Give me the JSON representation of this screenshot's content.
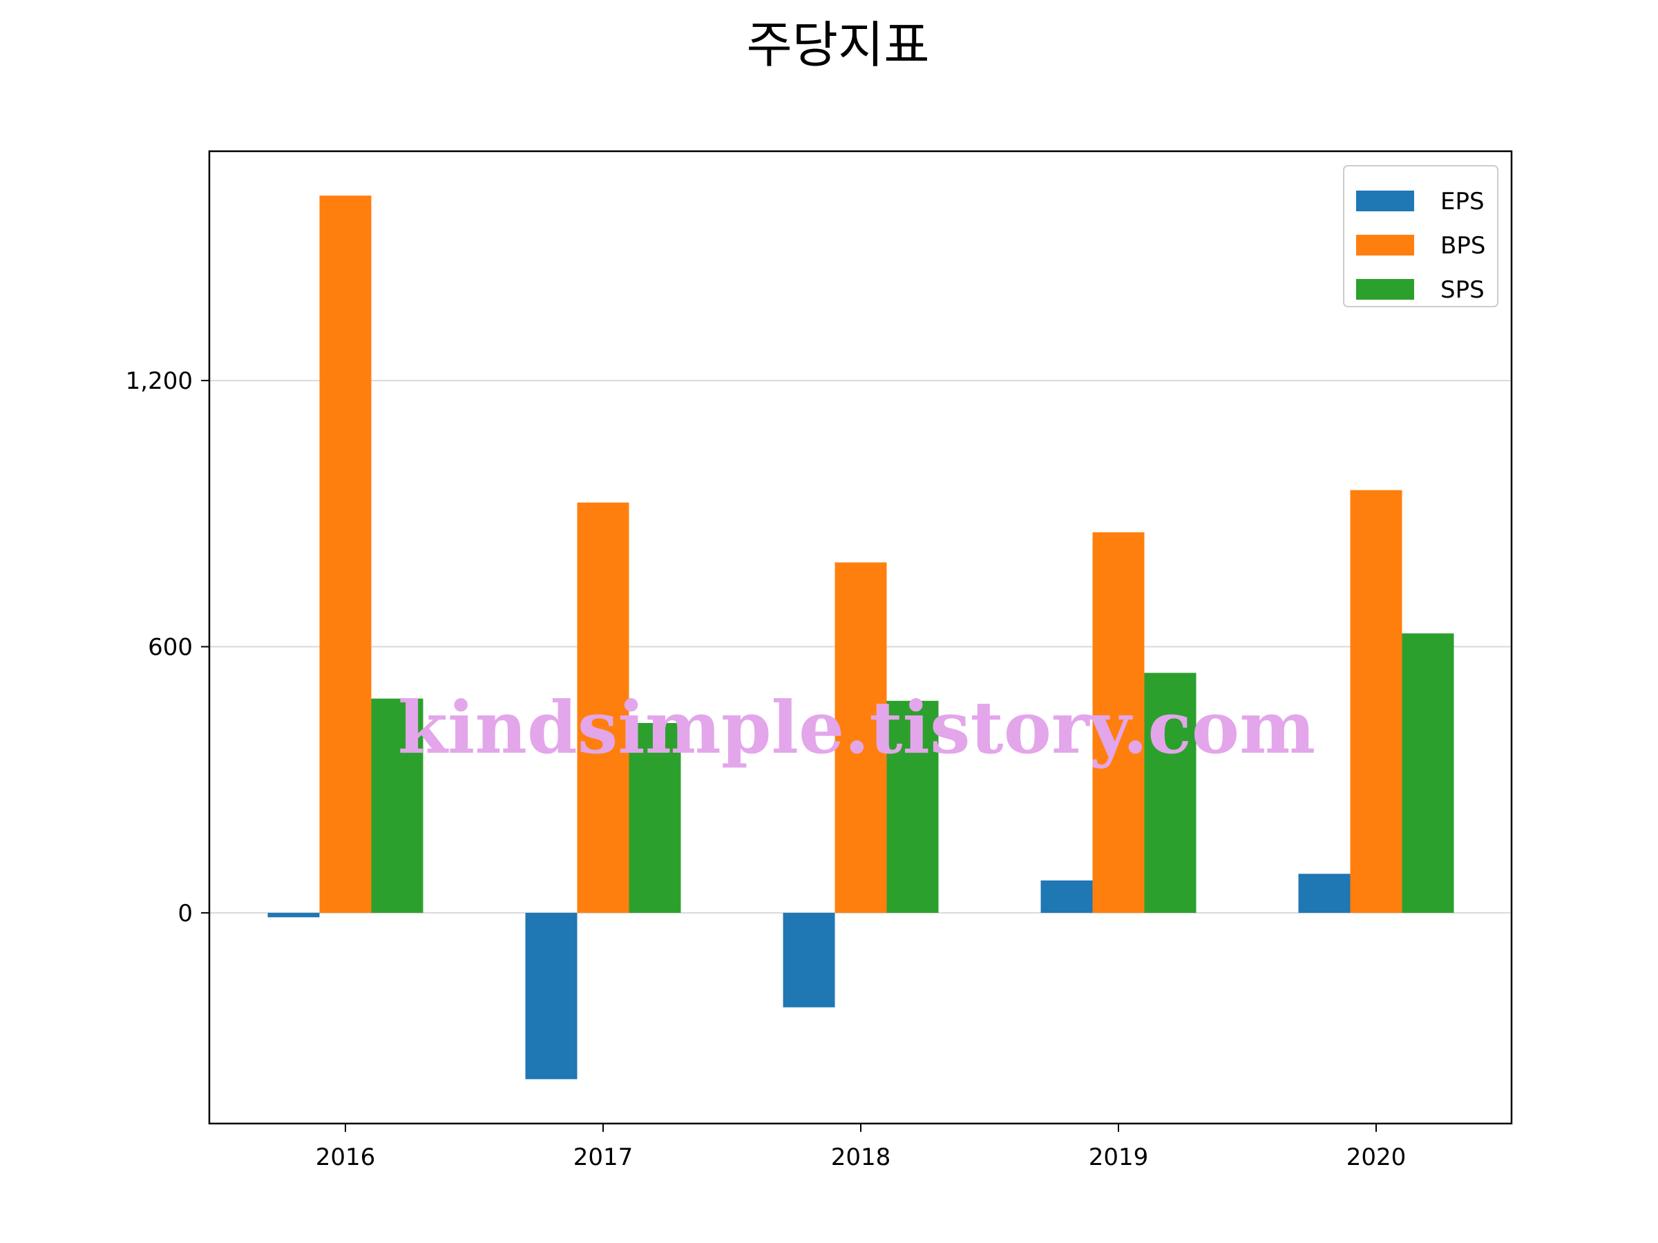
{
  "chart_data": {
    "type": "bar",
    "title": "주당지표",
    "categories": [
      "2016",
      "2017",
      "2018",
      "2019",
      "2020"
    ],
    "series": [
      {
        "name": "EPS",
        "color": "#1f77b4",
        "values": [
          -10,
          -375,
          -213,
          73,
          88
        ]
      },
      {
        "name": "BPS",
        "color": "#ff7f0e",
        "values": [
          1617,
          925,
          790,
          858,
          953
        ]
      },
      {
        "name": "SPS",
        "color": "#2ca02c",
        "values": [
          483,
          428,
          478,
          541,
          630
        ]
      }
    ],
    "yticks": [
      0,
      600,
      1200
    ],
    "ytick_labels": [
      "0",
      "600",
      "1,200"
    ],
    "ylim": [
      -475,
      1717
    ],
    "grid": "y",
    "legend": "top-right",
    "xlabel": "",
    "ylabel": ""
  },
  "watermark": "kindsimple.tistory.com"
}
